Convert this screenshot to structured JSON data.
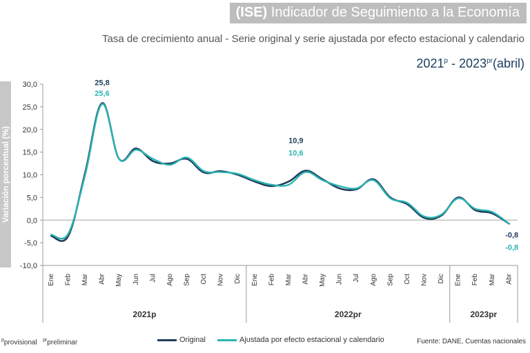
{
  "header": {
    "title_prefix": "(ISE)",
    "title_rest": "Indicador de Seguimiento a la Economía"
  },
  "subtitle": "Tasa de crecimiento anual - Serie original y serie ajustada por efecto estacional y calendario",
  "period": {
    "start": "2021",
    "start_sup": "p",
    "sep": " - ",
    "end": "2023",
    "end_sup": "pr",
    "end_note": "(abril)"
  },
  "footnote": {
    "p_sup": "p",
    "p_text": "provisional",
    "pr_sup": "pr",
    "pr_text": "preliminar"
  },
  "source": "Fuente: DANE, Cuentas nacionales",
  "colors": {
    "original": "#1f3d5c",
    "ajustada": "#2bb3b1",
    "label_dark": "#1f3d5c",
    "label_teal": "#2bb3b1"
  },
  "chart_data": {
    "type": "line",
    "ylabel": "Variación porcentual (%)",
    "ylim": [
      -10,
      30
    ],
    "y_ticks": [
      "30,0",
      "25,0",
      "20,0",
      "15,0",
      "10,0",
      "5,0",
      "0,0",
      "-5,0",
      "-10,0"
    ],
    "categories": [
      "Ene",
      "Feb",
      "Mar",
      "Abr",
      "May",
      "Jun",
      "Jul",
      "Ago",
      "Sep",
      "Oct",
      "Nov",
      "Dic",
      "Ene",
      "Feb",
      "Mar",
      "Abr",
      "May",
      "Jun",
      "Jul",
      "Ago",
      "Sep",
      "Oct",
      "Nov",
      "Dic",
      "Ene",
      "Feb",
      "Mar",
      "Abr"
    ],
    "groups": [
      {
        "label": "2021p",
        "start": 0,
        "end": 11
      },
      {
        "label": "2022pr",
        "start": 12,
        "end": 23
      },
      {
        "label": "2023pr",
        "start": 24,
        "end": 27
      }
    ],
    "series": [
      {
        "name": "Original",
        "values": [
          -3.5,
          -3.5,
          10.5,
          25.8,
          13.5,
          15.8,
          13.0,
          12.5,
          13.5,
          10.5,
          10.8,
          10.0,
          8.5,
          7.5,
          8.5,
          10.9,
          9.0,
          7.0,
          6.8,
          9.0,
          5.0,
          3.5,
          0.5,
          1.0,
          5.0,
          2.2,
          1.5,
          -0.8
        ]
      },
      {
        "name": "Ajustada por efecto estacional y calendario",
        "values": [
          -3.2,
          -3.0,
          10.0,
          25.6,
          13.5,
          15.5,
          13.5,
          12.2,
          13.8,
          10.8,
          10.6,
          10.2,
          8.8,
          7.8,
          7.8,
          10.6,
          8.8,
          7.5,
          7.0,
          8.8,
          4.8,
          3.8,
          0.8,
          1.2,
          4.8,
          2.5,
          1.8,
          -0.8
        ]
      }
    ],
    "annotations": [
      {
        "index": 3,
        "series": 0,
        "text": "25,8"
      },
      {
        "index": 3,
        "series": 1,
        "text": "25,6"
      },
      {
        "index": 15,
        "series": 0,
        "text": "10,9"
      },
      {
        "index": 15,
        "series": 1,
        "text": "10,6"
      },
      {
        "index": 27,
        "series": 0,
        "text": "-0,8"
      },
      {
        "index": 27,
        "series": 1,
        "text": "-0,8"
      }
    ],
    "legend_position": "bottom",
    "grid": false
  }
}
